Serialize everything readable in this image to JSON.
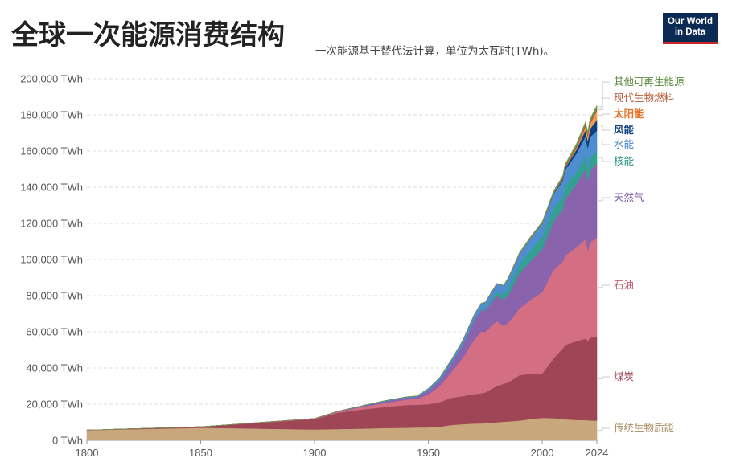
{
  "header": {
    "title": "全球一次能源消费结构",
    "subtitle": "一次能源基于替代法计算，单位为太瓦时(TWh)。",
    "logo_line1": "Our World",
    "logo_line2": "in Data"
  },
  "chart_data": {
    "type": "area",
    "stacked": true,
    "title": "全球一次能源消费结构",
    "subtitle": "一次能源基于替代法计算，单位为太瓦时(TWh)。",
    "xlabel": "",
    "ylabel": "",
    "xlim": [
      1800,
      2024
    ],
    "ylim": [
      0,
      200000
    ],
    "y_ticks": [
      0,
      20000,
      40000,
      60000,
      80000,
      100000,
      120000,
      140000,
      160000,
      180000,
      200000
    ],
    "y_tick_labels": [
      "0 TWh",
      "20,000 TWh",
      "40,000 TWh",
      "60,000 TWh",
      "80,000 TWh",
      "100,000 TWh",
      "120,000 TWh",
      "140,000 TWh",
      "160,000 TWh",
      "180,000 TWh",
      "200,000 TWh"
    ],
    "x_ticks": [
      1800,
      1850,
      1900,
      1950,
      2000,
      2024
    ],
    "x_tick_labels": [
      "1800",
      "1850",
      "1900",
      "1950",
      "2000",
      "2024"
    ],
    "grid": "horizontal dashed",
    "legend": "right, inline labels",
    "x": [
      1800,
      1850,
      1900,
      1910,
      1920,
      1930,
      1940,
      1945,
      1950,
      1955,
      1960,
      1965,
      1970,
      1973,
      1975,
      1980,
      1983,
      1985,
      1990,
      1995,
      2000,
      2005,
      2009,
      2010,
      2015,
      2019,
      2020,
      2021,
      2024
    ],
    "series": [
      {
        "name": "传统生物质能",
        "color": "#c9a77c",
        "values": [
          5600,
          7000,
          6000,
          6200,
          6500,
          6800,
          7000,
          7100,
          7200,
          7600,
          8500,
          9000,
          9300,
          9400,
          9500,
          10000,
          10300,
          10500,
          11000,
          11800,
          12500,
          12300,
          11800,
          11700,
          11300,
          11200,
          11100,
          11000,
          11000
        ]
      },
      {
        "name": "煤炭",
        "color": "#9e4556",
        "values": [
          100,
          500,
          5800,
          9000,
          10500,
          11500,
          12500,
          12600,
          12800,
          13500,
          15000,
          15500,
          16200,
          16600,
          17000,
          20000,
          21000,
          21500,
          25000,
          25000,
          24500,
          33000,
          39000,
          41000,
          43500,
          45000,
          44000,
          46000,
          46000
        ]
      },
      {
        "name": "石油",
        "color": "#d46e82",
        "values": [
          0,
          0,
          200,
          500,
          1300,
          2200,
          3000,
          3200,
          5500,
          9000,
          14000,
          21000,
          30000,
          34000,
          33500,
          36000,
          32000,
          32800,
          37000,
          41000,
          45000,
          49000,
          48000,
          49500,
          52000,
          55000,
          50000,
          52500,
          55000
        ]
      },
      {
        "name": "天然气",
        "color": "#8a63ad",
        "values": [
          0,
          0,
          70,
          200,
          400,
          800,
          1000,
          1100,
          2100,
          3000,
          5000,
          7000,
          10500,
          11800,
          12000,
          14000,
          14500,
          15400,
          19500,
          21500,
          24000,
          27000,
          29000,
          31000,
          35000,
          39000,
          38500,
          40000,
          41000
        ]
      },
      {
        "name": "核能",
        "color": "#33a091",
        "values": [
          0,
          0,
          0,
          0,
          0,
          0,
          0,
          0,
          0,
          0,
          1,
          70,
          160,
          380,
          600,
          1900,
          2800,
          4000,
          5000,
          6000,
          6700,
          7200,
          7000,
          7200,
          6600,
          7000,
          6700,
          7000,
          6800
        ]
      },
      {
        "name": "水能",
        "color": "#4d8dd0",
        "values": [
          0,
          0,
          20,
          80,
          200,
          350,
          500,
          550,
          1000,
          1500,
          1900,
          2400,
          3000,
          3400,
          3800,
          4700,
          5000,
          5200,
          5700,
          6700,
          7300,
          7900,
          8800,
          9200,
          10100,
          11000,
          11400,
          11300,
          11500
        ]
      },
      {
        "name": "风能",
        "color": "#103f7d",
        "values": [
          0,
          0,
          0,
          0,
          0,
          0,
          0,
          0,
          0,
          0,
          0,
          0,
          0,
          0,
          0,
          0,
          0,
          10,
          10,
          20,
          80,
          280,
          780,
          950,
          2300,
          3500,
          4000,
          4500,
          6000
        ]
      },
      {
        "name": "太阳能",
        "color": "#f09a57",
        "values": [
          0,
          0,
          0,
          0,
          0,
          0,
          0,
          0,
          0,
          0,
          0,
          0,
          0,
          0,
          0,
          0,
          0,
          0,
          0,
          1,
          5,
          10,
          55,
          90,
          700,
          1850,
          2300,
          2800,
          5000
        ]
      },
      {
        "name": "现代生物燃料",
        "color": "#b45a36",
        "values": [
          0,
          0,
          0,
          0,
          0,
          0,
          0,
          0,
          0,
          0,
          0,
          0,
          0,
          0,
          0,
          50,
          100,
          150,
          250,
          300,
          300,
          500,
          1000,
          1100,
          1200,
          1300,
          1200,
          1300,
          1400
        ]
      },
      {
        "name": "其他可再生能源",
        "color": "#6a9d4a",
        "values": [
          0,
          0,
          0,
          0,
          0,
          0,
          0,
          0,
          0,
          0,
          20,
          30,
          60,
          70,
          80,
          120,
          140,
          200,
          400,
          500,
          600,
          700,
          900,
          900,
          1200,
          1300,
          1350,
          1400,
          1500
        ]
      }
    ],
    "labels": [
      {
        "name": "其他可再生能源",
        "color": "#5a8a3a",
        "weight": "normal"
      },
      {
        "name": "现代生物燃料",
        "color": "#b45a36",
        "weight": "normal"
      },
      {
        "name": "太阳能",
        "color": "#e5752b",
        "weight": "bold"
      },
      {
        "name": "风能",
        "color": "#103f7d",
        "weight": "bold"
      },
      {
        "name": "水能",
        "color": "#3c7ec4",
        "weight": "normal"
      },
      {
        "name": "核能",
        "color": "#2a9485",
        "weight": "normal"
      },
      {
        "name": "天然气",
        "color": "#7b55a0",
        "weight": "normal"
      },
      {
        "name": "石油",
        "color": "#c65c72",
        "weight": "normal"
      },
      {
        "name": "煤炭",
        "color": "#9e4556",
        "weight": "normal"
      },
      {
        "name": "传统生物质能",
        "color": "#a88a5f",
        "weight": "normal"
      }
    ]
  }
}
